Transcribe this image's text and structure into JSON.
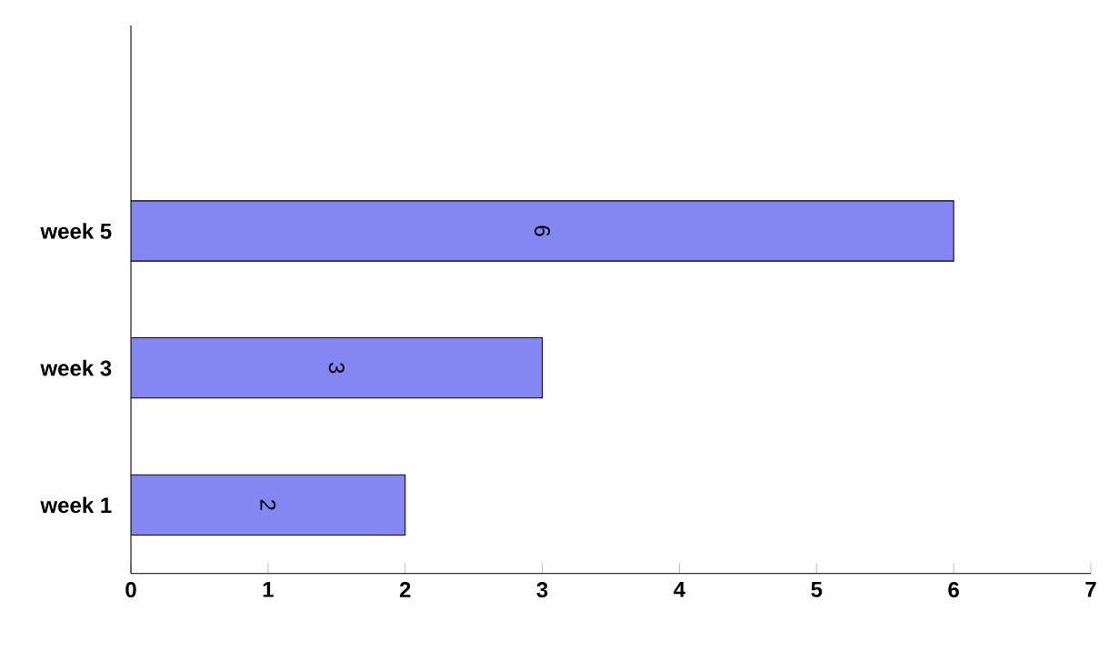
{
  "chart_data": {
    "type": "bar",
    "orientation": "horizontal",
    "categories": [
      null,
      "week 5",
      "week 3",
      "week 1"
    ],
    "values": [
      null,
      6,
      3,
      2
    ],
    "color": "#8486f2",
    "xlim": [
      0,
      7
    ],
    "xticks": [
      0,
      1,
      2,
      3,
      4,
      5,
      6,
      7
    ],
    "data_labels": true,
    "grid": false
  }
}
